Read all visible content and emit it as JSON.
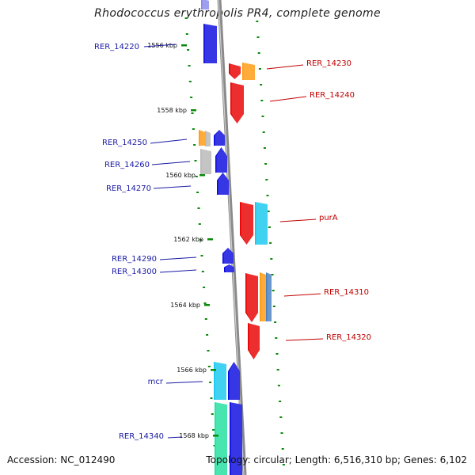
{
  "title": "Rhodococcus erythropolis PR4, complete genome",
  "accession": "Accession: NC_012490",
  "summary": "Topology: circular; Length: 6,516,310 bp; Genes: 6,102",
  "colors": {
    "blue": "#0a0ae0",
    "red": "#e80000",
    "orange": "#ff9a10",
    "gray": "#b8b8b8",
    "cyan": "#18c8f0",
    "steel": "#4a80c0",
    "teal": "#30e0d8",
    "green": "#20e0a0",
    "dot": "#0a8a0a",
    "backbone": "#8a8a8a"
  },
  "ticks": [
    {
      "label": "1556 kbp",
      "kb": 1556
    },
    {
      "label": "1558 kbp",
      "kb": 1558
    },
    {
      "label": "1560 kbp",
      "kb": 1560
    },
    {
      "label": "1562 kbp",
      "kb": 1562
    },
    {
      "label": "1564 kbp",
      "kb": 1564
    },
    {
      "label": "1566 kbp",
      "kb": 1566
    },
    {
      "label": "1568 kbp",
      "kb": 1568
    }
  ],
  "genes_left": [
    {
      "label": "RER_14220"
    },
    {
      "label": "RER_14250"
    },
    {
      "label": "RER_14260"
    },
    {
      "label": "RER_14270"
    },
    {
      "label": "RER_14290"
    },
    {
      "label": "RER_14300"
    },
    {
      "label": "mcr"
    },
    {
      "label": "RER_14340"
    }
  ],
  "genes_right": [
    {
      "label": "RER_14230"
    },
    {
      "label": "RER_14240"
    },
    {
      "label": "purA"
    },
    {
      "label": "RER_14310"
    },
    {
      "label": "RER_14320"
    }
  ]
}
